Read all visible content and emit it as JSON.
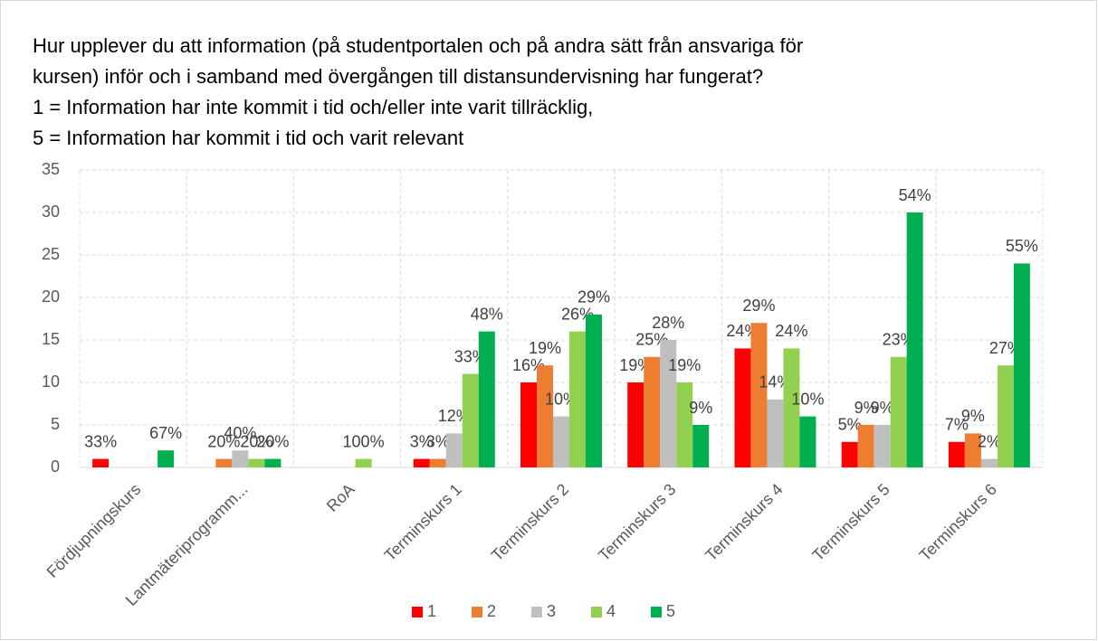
{
  "chart_data": {
    "type": "bar",
    "title": [
      "Hur upplever du att information (på studentportalen och på andra sätt från ansvariga för",
      "kursen) inför och i samband med övergången till distansundervisning har fungerat?",
      "1 = Information har inte kommit i tid och/eller inte varit tillräcklig,",
      "5 = Information har kommit i tid och varit relevant"
    ],
    "categories": [
      "Fördjupningskurs",
      "Lantmäteriprogramm...",
      "RoA",
      "Terminskurs 1",
      "Terminskurs 2",
      "Terminskurs 3",
      "Terminskurs 4",
      "Terminskurs 5",
      "Terminskurs 6"
    ],
    "series": [
      {
        "name": "1",
        "color": "#ff0000",
        "values": [
          1,
          0,
          0,
          1,
          10,
          10,
          14,
          3,
          3
        ],
        "value_labels": [
          "33%",
          null,
          null,
          "3%",
          "16%",
          "19%",
          "24%",
          "5%",
          "7%"
        ]
      },
      {
        "name": "2",
        "color": "#ed7d31",
        "values": [
          0,
          1,
          0,
          1,
          12,
          13,
          17,
          5,
          4
        ],
        "value_labels": [
          null,
          "20%",
          null,
          "3%",
          "19%",
          "25%",
          "29%",
          "9%",
          "9%"
        ]
      },
      {
        "name": "3",
        "color": "#bfbfbf",
        "values": [
          0,
          2,
          0,
          4,
          6,
          15,
          8,
          5,
          1
        ],
        "value_labels": [
          null,
          "40%",
          null,
          "12%",
          "10%",
          "28%",
          "14%",
          "9%",
          "2%"
        ]
      },
      {
        "name": "4",
        "color": "#92d050",
        "values": [
          0,
          1,
          1,
          11,
          16,
          10,
          14,
          13,
          12
        ],
        "value_labels": [
          null,
          "20%",
          "100%",
          "33%",
          "26%",
          "19%",
          "24%",
          "23%",
          "27%"
        ]
      },
      {
        "name": "5",
        "color": "#00b050",
        "values": [
          2,
          1,
          0,
          16,
          18,
          5,
          6,
          30,
          24
        ],
        "value_labels": [
          "67%",
          "20%",
          null,
          "48%",
          "29%",
          "9%",
          "10%",
          "54%",
          "55%"
        ]
      }
    ],
    "ylim": [
      0,
      35
    ],
    "yticks": [
      0,
      5,
      10,
      15,
      20,
      25,
      30,
      35
    ],
    "grid": true,
    "legend": "bottom"
  }
}
